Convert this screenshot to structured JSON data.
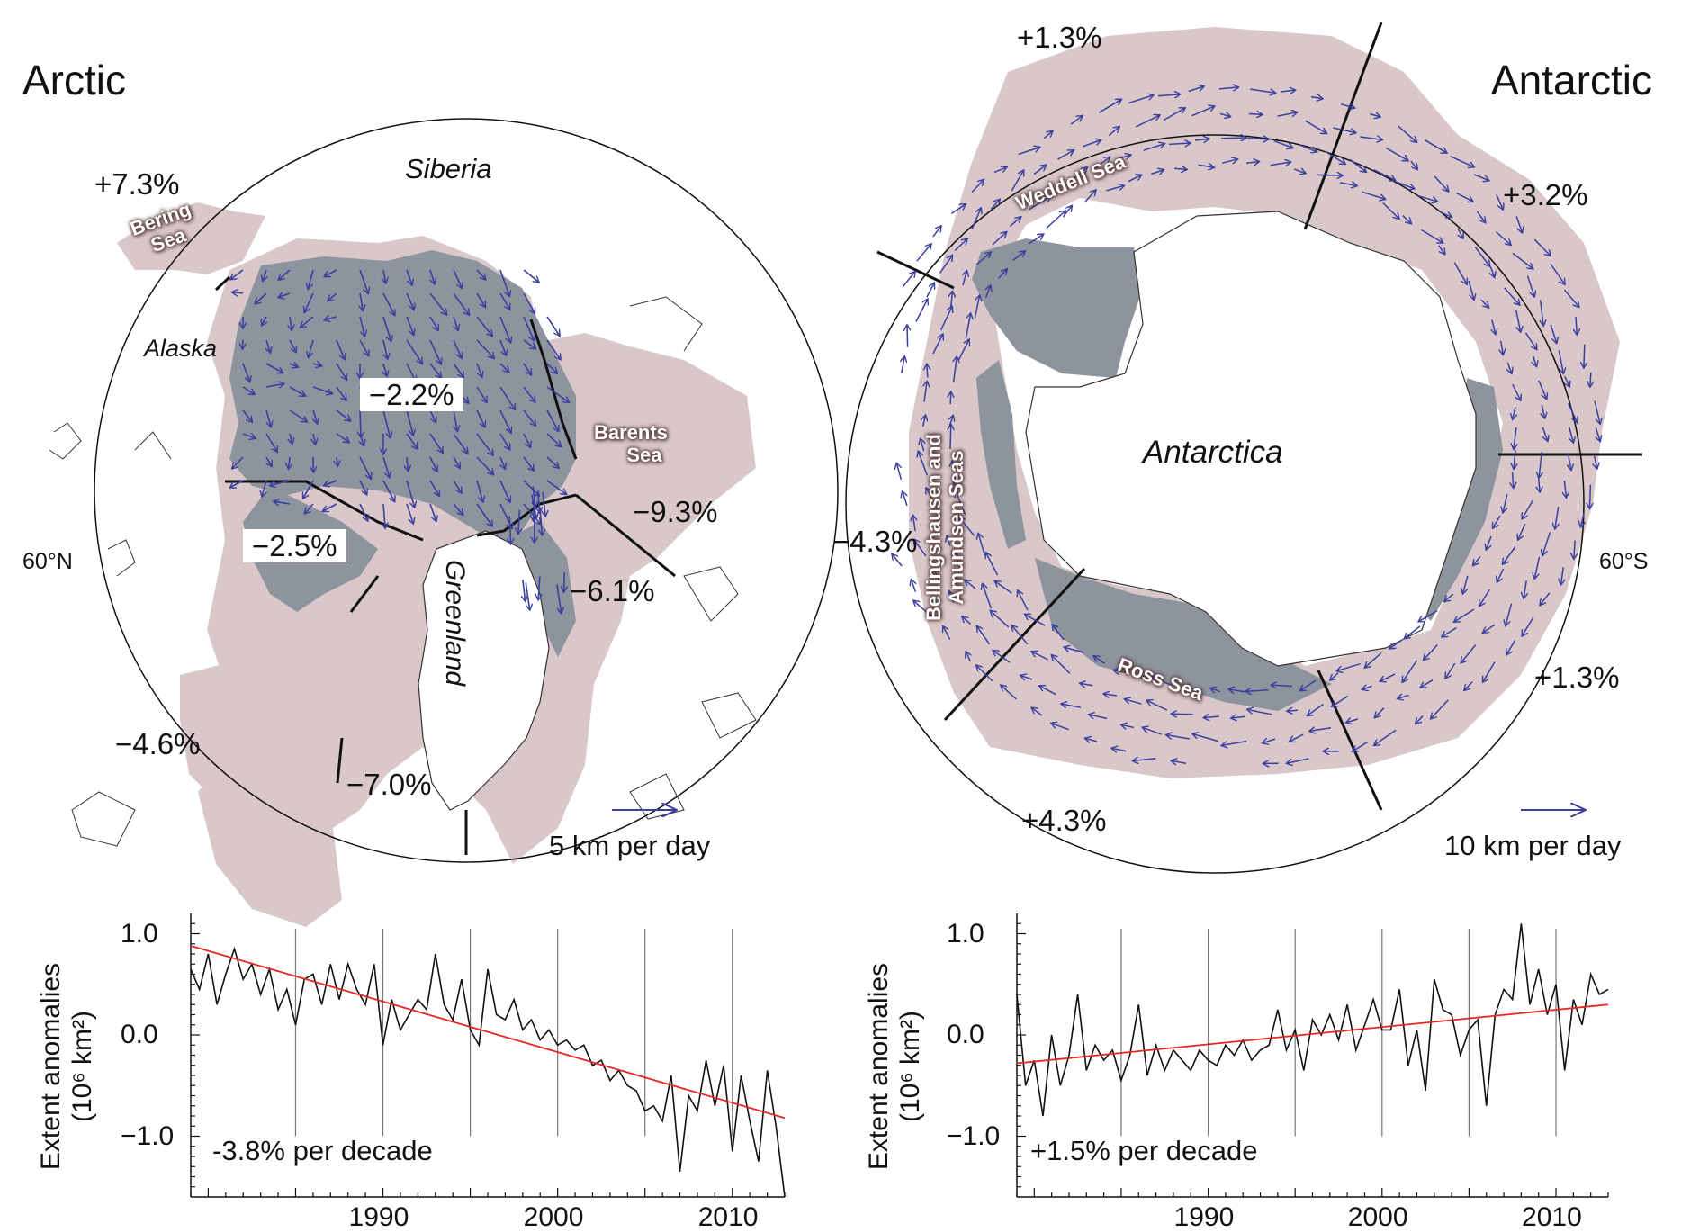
{
  "arctic": {
    "title": "Arctic",
    "lat_label": "60°N",
    "land_labels": {
      "siberia": "Siberia",
      "alaska": "Alaska",
      "greenland": "Greenland"
    },
    "sea_labels": {
      "bering_1": "Bering",
      "bering_2": "Sea",
      "barents_1": "Barents",
      "barents_2": "Sea"
    },
    "sector_trends": {
      "bering": "+7.3%",
      "central": "−2.2%",
      "canadian": "−2.5%",
      "barents": "−9.3%",
      "greenland_sea": "−6.1%",
      "hudson": "−4.6%",
      "baffin": "−7.0%"
    },
    "scale_label": "5 km per day"
  },
  "antarctic": {
    "title": "Antarctic",
    "lat_label": "60°S",
    "land_labels": {
      "antarctica": "Antarctica"
    },
    "sea_labels": {
      "weddell": "Weddell Sea",
      "bell_1": "Bellingshausen and",
      "bell_2": "Amundsen Seas",
      "ross": "Ross Sea"
    },
    "sector_trends": {
      "weddell": "+1.3%",
      "indian": "+3.2%",
      "pacific": "+1.3%",
      "ross": "+4.3%",
      "bellingshausen": "−4.3%"
    },
    "scale_label": "10 km per day"
  },
  "colors": {
    "ice_pack": "#8d949e",
    "ice_edge": "#d9c7c9",
    "arrows": "#3b3f9e",
    "trend_line": "#e8261f"
  },
  "chart_data": [
    {
      "type": "line",
      "ylabel_1": "Extent anomalies",
      "ylabel_2": "(10⁶ km²)",
      "y_ticks": [
        "1.0",
        "0.0",
        "−1.0"
      ],
      "x_ticks": [
        "1990",
        "2000",
        "2010"
      ],
      "xlim": [
        1979,
        2013
      ],
      "ylim": [
        -1.6,
        1.2
      ],
      "trend_label": "-3.8% per decade",
      "trend": {
        "x": [
          1979,
          2013
        ],
        "y": [
          0.88,
          -0.82
        ]
      },
      "series": [
        {
          "x": [
            1979,
            1979.5,
            1980,
            1980.5,
            1981,
            1981.5,
            1982,
            1982.5,
            1983,
            1983.5,
            1984,
            1984.5,
            1985,
            1985.5,
            1986,
            1986.5,
            1987,
            1987.5,
            1988,
            1988.5,
            1989,
            1989.5,
            1990,
            1990.5,
            1991,
            1991.5,
            1992,
            1992.5,
            1993,
            1993.5,
            1994,
            1994.5,
            1995,
            1995.5,
            1996,
            1996.5,
            1997,
            1997.5,
            1998,
            1998.5,
            1999,
            1999.5,
            2000,
            2000.5,
            2001,
            2001.5,
            2002,
            2002.5,
            2003,
            2003.5,
            2004,
            2004.5,
            2005,
            2005.5,
            2006,
            2006.5,
            2007,
            2007.5,
            2008,
            2008.5,
            2009,
            2009.5,
            2010,
            2010.5,
            2011,
            2011.5,
            2012,
            2012.5,
            2013
          ],
          "y": [
            0.65,
            0.45,
            0.8,
            0.3,
            0.6,
            0.85,
            0.55,
            0.7,
            0.4,
            0.65,
            0.25,
            0.45,
            0.1,
            0.55,
            0.6,
            0.3,
            0.7,
            0.35,
            0.7,
            0.45,
            0.3,
            0.7,
            -0.1,
            0.35,
            0.05,
            0.2,
            0.35,
            0.25,
            0.8,
            0.3,
            0.15,
            0.55,
            0.05,
            -0.1,
            0.65,
            0.2,
            0.15,
            0.35,
            0.05,
            0.15,
            -0.05,
            0.05,
            -0.1,
            -0.05,
            -0.15,
            -0.1,
            -0.3,
            -0.25,
            -0.45,
            -0.35,
            -0.5,
            -0.55,
            -0.75,
            -0.7,
            -0.85,
            -0.4,
            -1.35,
            -0.6,
            -0.75,
            -0.25,
            -0.7,
            -0.3,
            -1.15,
            -0.4,
            -0.85,
            -1.25,
            -0.35,
            -0.9,
            -1.6
          ]
        }
      ]
    },
    {
      "type": "line",
      "ylabel_1": "Extent anomalies",
      "ylabel_2": "(10⁶ km²)",
      "y_ticks": [
        "1.0",
        "0.0",
        "−1.0"
      ],
      "x_ticks": [
        "1990",
        "2000",
        "2010"
      ],
      "xlim": [
        1979,
        2013
      ],
      "ylim": [
        -1.6,
        1.2
      ],
      "trend_label": "+1.5% per decade",
      "trend": {
        "x": [
          1979,
          2013
        ],
        "y": [
          -0.28,
          0.3
        ]
      },
      "series": [
        {
          "x": [
            1979,
            1979.5,
            1980,
            1980.5,
            1981,
            1981.5,
            1982,
            1982.5,
            1983,
            1983.5,
            1984,
            1984.5,
            1985,
            1985.5,
            1986,
            1986.5,
            1987,
            1987.5,
            1988,
            1988.5,
            1989,
            1989.5,
            1990,
            1990.5,
            1991,
            1991.5,
            1992,
            1992.5,
            1993,
            1993.5,
            1994,
            1994.5,
            1995,
            1995.5,
            1996,
            1996.5,
            1997,
            1997.5,
            1998,
            1998.5,
            1999,
            1999.5,
            2000,
            2000.5,
            2001,
            2001.5,
            2002,
            2002.5,
            2003,
            2003.5,
            2004,
            2004.5,
            2005,
            2005.5,
            2006,
            2006.5,
            2007,
            2007.5,
            2008,
            2008.5,
            2009,
            2009.5,
            2010,
            2010.5,
            2011,
            2011.5,
            2012,
            2012.5,
            2013
          ],
          "y": [
            0.4,
            -0.5,
            -0.25,
            -0.8,
            0.0,
            -0.5,
            -0.2,
            0.4,
            -0.35,
            -0.1,
            -0.25,
            -0.15,
            -0.45,
            -0.2,
            0.3,
            -0.4,
            -0.1,
            -0.35,
            -0.15,
            -0.25,
            -0.35,
            -0.15,
            -0.25,
            -0.3,
            -0.1,
            -0.2,
            -0.05,
            -0.25,
            -0.15,
            -0.1,
            0.25,
            -0.15,
            0.05,
            -0.35,
            0.15,
            0.0,
            0.2,
            -0.05,
            0.3,
            -0.15,
            0.1,
            0.35,
            0.05,
            0.05,
            0.45,
            -0.3,
            0.05,
            -0.55,
            0.55,
            0.25,
            0.2,
            -0.2,
            0.05,
            0.15,
            -0.7,
            0.2,
            0.45,
            0.35,
            1.1,
            0.3,
            0.65,
            0.2,
            0.5,
            -0.35,
            0.35,
            0.1,
            0.6,
            0.4,
            0.45
          ]
        }
      ]
    }
  ]
}
